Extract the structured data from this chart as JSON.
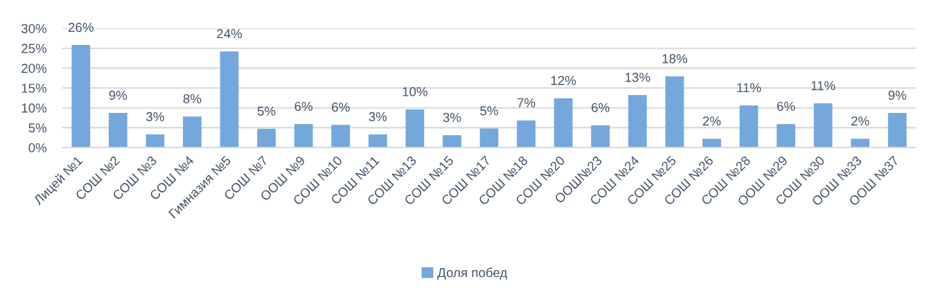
{
  "chart_data": {
    "type": "bar",
    "categories": [
      "Лицей №1",
      "СОШ №2",
      "СОШ №3",
      "СОШ №4",
      "Гимназия №5",
      "СОШ №7",
      "ООШ №9",
      "СОШ №10",
      "СОШ №11",
      "СОШ №13",
      "СОШ №15",
      "СОШ №17",
      "СОШ №18",
      "СОШ №20",
      "ООШ№23",
      "СОШ №24",
      "СОШ №25",
      "СОШ №26",
      "СОШ №28",
      "ООШ №29",
      "СОШ №30",
      "ООШ №33",
      "ООШ №37"
    ],
    "series": [
      {
        "name": "Доля побед",
        "color": "#74a8dc",
        "values": [
          25.8,
          8.7,
          3.3,
          7.8,
          24.2,
          4.7,
          5.9,
          5.7,
          3.3,
          9.6,
          3.1,
          4.8,
          6.8,
          12.4,
          5.6,
          13.2,
          17.9,
          2.2,
          10.6,
          5.9,
          11.1,
          2.2,
          8.7
        ],
        "value_labels": [
          "26%",
          "9%",
          "3%",
          "8%",
          "24%",
          "5%",
          "6%",
          "6%",
          "3%",
          "10%",
          "3%",
          "5%",
          "7%",
          "12%",
          "6%",
          "13%",
          "18%",
          "2%",
          "11%",
          "6%",
          "11%",
          "2%",
          "9%"
        ]
      }
    ],
    "ylim": [
      0,
      30
    ],
    "yticks": [
      {
        "value": 0,
        "label": "0%"
      },
      {
        "value": 5,
        "label": "5%"
      },
      {
        "value": 10,
        "label": "10%"
      },
      {
        "value": 15,
        "label": "15%"
      },
      {
        "value": 20,
        "label": "20%"
      },
      {
        "value": 25,
        "label": "25%"
      },
      {
        "value": 30,
        "label": "30%"
      }
    ],
    "grid": "y",
    "legend": "bottom"
  }
}
